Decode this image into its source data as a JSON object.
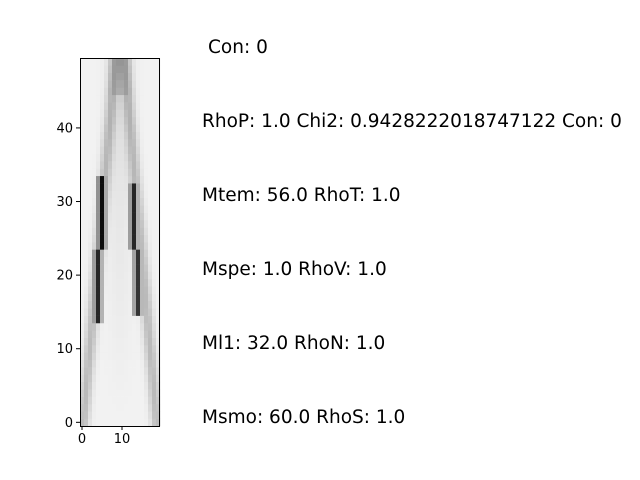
{
  "chart_data": {
    "type": "heatmap",
    "colormap": "gray_r",
    "xlim": [
      0,
      19
    ],
    "ylim": [
      0,
      49
    ],
    "x_ticks": [
      0,
      10
    ],
    "y_ticks": [
      0,
      10,
      20,
      30,
      40
    ],
    "x_tick_labels": [
      "0",
      "10"
    ],
    "y_tick_labels": [
      "0",
      "10",
      "20",
      "30",
      "40"
    ],
    "grid": false,
    "dark_segments": [
      {
        "x": 4,
        "y_from": 14,
        "y_to": 23,
        "value": 0.85
      },
      {
        "x": 5,
        "y_from": 24,
        "y_to": 33,
        "value": 0.95
      },
      {
        "x": 13,
        "y_from": 24,
        "y_to": 32,
        "value": 0.85
      },
      {
        "x": 14,
        "y_from": 15,
        "y_to": 23,
        "value": 0.8
      }
    ]
  },
  "labels": {
    "con": "Con: 0",
    "rhop": "RhoP: 1.0 Chi2: 0.9428222018747122 Con: 0",
    "mtem": "Mtem: 56.0 RhoT: 1.0",
    "mspe": "Mspe: 1.0 RhoV: 1.0",
    "ml1": "Ml1: 32.0 RhoN: 1.0",
    "msmo": "Msmo: 60.0 RhoS: 1.0"
  },
  "colors": {
    "background": "#ffffff",
    "axes": "#000000",
    "text": "#000000"
  }
}
